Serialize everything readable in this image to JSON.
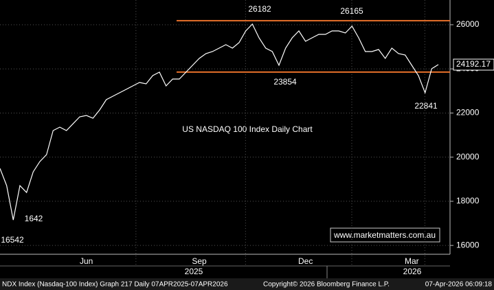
{
  "chart_data": {
    "type": "line",
    "title": "US NASDAQ 100 Index Daily Chart",
    "title_color": "#7cd67c",
    "watermark": "www.marketmatters.com.au",
    "footer": [
      "NDX Index (Nasdaq-100 Index) Graph 217 Daily 07APR2025-07APR2026",
      "Copyright© 2026 Bloomberg Finance L.P.",
      "07-Apr-2026 06:09:18"
    ],
    "years": [
      "2025",
      "2026"
    ],
    "categories": [
      null,
      null,
      null,
      null,
      null,
      null,
      null,
      null,
      null,
      null,
      null,
      null,
      null,
      "Jun",
      null,
      null,
      null,
      null,
      null,
      null,
      null,
      null,
      null,
      null,
      null,
      null,
      null,
      null,
      null,
      null,
      "Sep",
      null,
      null,
      null,
      null,
      null,
      null,
      null,
      null,
      null,
      null,
      null,
      null,
      null,
      null,
      null,
      "Dec",
      null,
      null,
      null,
      null,
      null,
      null,
      null,
      null,
      null,
      null,
      null,
      null,
      null,
      null,
      null,
      "Mar",
      null,
      null,
      null,
      null
    ],
    "series": [
      {
        "name": "NDX Index",
        "color": "#ffffff",
        "values": [
          19490,
          18711,
          17153,
          18711,
          18399,
          19334,
          19801,
          20113,
          21203,
          21359,
          21203,
          21514,
          21826,
          21888,
          21764,
          22137,
          22605,
          22760,
          22916,
          23072,
          23228,
          23383,
          23321,
          23695,
          23851,
          23228,
          23539,
          23539,
          23851,
          24162,
          24474,
          24692,
          24785,
          24941,
          25097,
          24941,
          25190,
          25720,
          26031,
          25408,
          24941,
          24785,
          24162,
          24941,
          25408,
          25720,
          25250,
          25408,
          25564,
          25564,
          25720,
          25720,
          25626,
          25938,
          25408,
          24785,
          24785,
          24879,
          24474,
          24941,
          24692,
          24630,
          24162,
          23695,
          22916,
          24006,
          24192
        ]
      }
    ],
    "last_price": 24192.17,
    "levels": [
      26182,
      23854
    ],
    "level_color": "#e8702a",
    "labels": [
      26182,
      26165,
      23854,
      22841,
      1642,
      16542
    ],
    "label_colors": [
      "#ffffff",
      "#ffffff",
      "#ffffff",
      "#ffffff",
      "#f0e020",
      "#ffffff"
    ],
    "ylim": [
      15600,
      27120
    ],
    "yticks": [
      16000,
      18000,
      20000,
      22000,
      24000,
      26000
    ],
    "grid": true
  }
}
